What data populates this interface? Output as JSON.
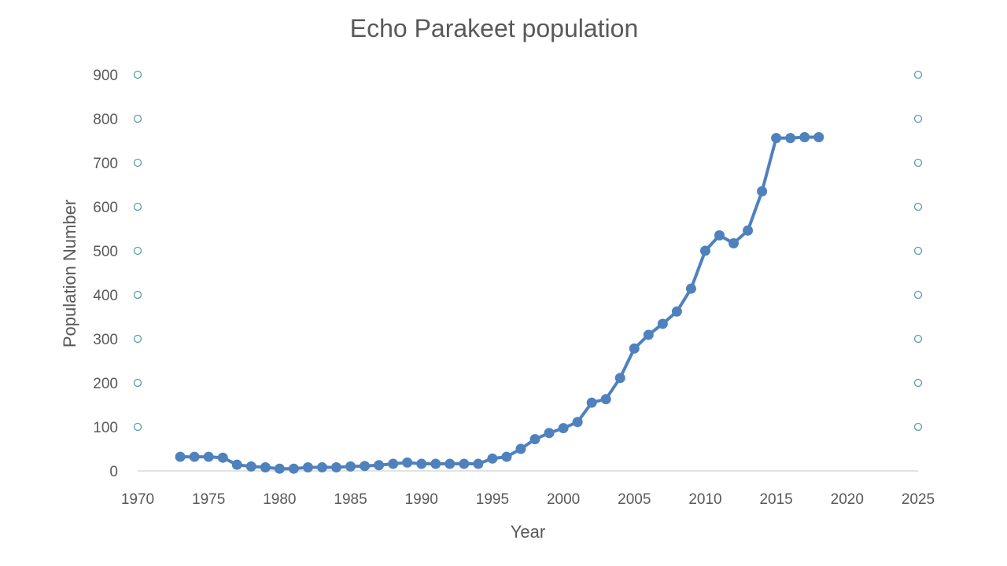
{
  "chart_data": {
    "type": "line",
    "title": "Echo Parakeet population",
    "xlabel": "Year",
    "ylabel": "Population Number",
    "xlim": [
      1970,
      2025
    ],
    "ylim": [
      0,
      900
    ],
    "x_ticks": [
      1970,
      1975,
      1980,
      1985,
      1990,
      1995,
      2000,
      2005,
      2010,
      2015,
      2020,
      2025
    ],
    "y_ticks": [
      0,
      100,
      200,
      300,
      400,
      500,
      600,
      700,
      800,
      900
    ],
    "series_color": "#4f81bd",
    "axis_marker_color": "#5b9bab",
    "axis_line_color": "#d9d9d9",
    "series": [
      {
        "name": "Echo Parakeet population",
        "x": [
          1973,
          1974,
          1975,
          1976,
          1977,
          1978,
          1979,
          1980,
          1981,
          1982,
          1983,
          1984,
          1985,
          1986,
          1987,
          1988,
          1989,
          1990,
          1991,
          1992,
          1993,
          1994,
          1995,
          1996,
          1997,
          1998,
          1999,
          2000,
          2001,
          2002,
          2003,
          2004,
          2005,
          2006,
          2007,
          2008,
          2009,
          2010,
          2011,
          2012,
          2013,
          2014,
          2015,
          2016,
          2017,
          2018
        ],
        "values": [
          32,
          32,
          32,
          30,
          14,
          10,
          8,
          5,
          5,
          8,
          8,
          8,
          10,
          11,
          13,
          16,
          19,
          16,
          16,
          16,
          16,
          16,
          28,
          32,
          50,
          72,
          86,
          97,
          111,
          155,
          163,
          211,
          278,
          309,
          334,
          362,
          414,
          500,
          535,
          517,
          546,
          635,
          756,
          756,
          758,
          758
        ]
      }
    ]
  }
}
